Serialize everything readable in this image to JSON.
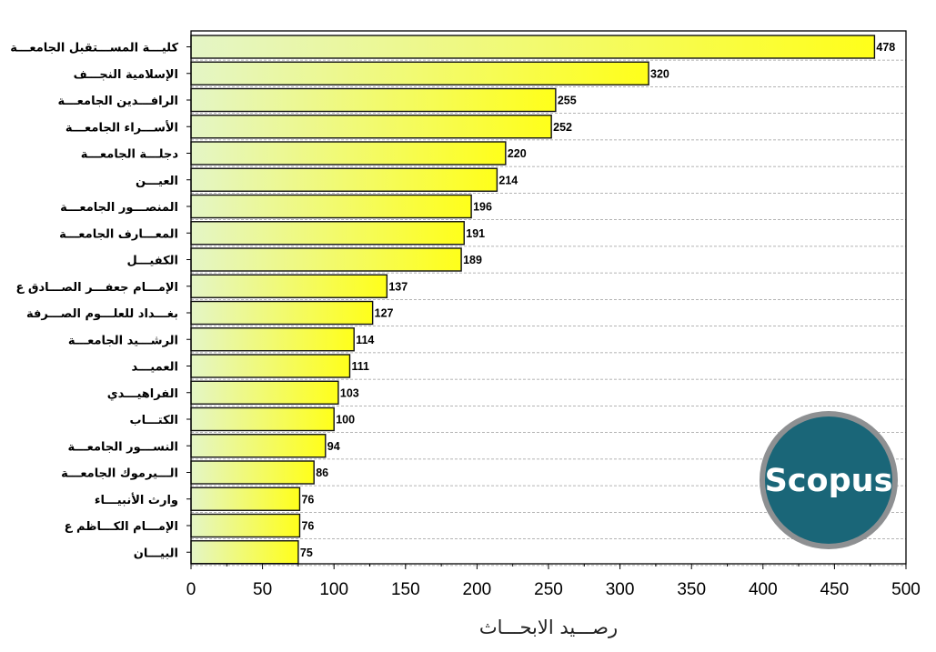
{
  "chart_data": {
    "type": "bar",
    "orientation": "horizontal",
    "title": "",
    "xlabel": "رصـــيد الابحـــاث",
    "ylabel": "",
    "xlim": [
      0,
      500
    ],
    "xticks": [
      0,
      50,
      100,
      150,
      200,
      250,
      300,
      350,
      400,
      450,
      500
    ],
    "grid": "horizontal dashed",
    "categories": [
      "كليـــة المســـتقبل الجامعـــة",
      "الإسلامية النجـــف",
      "الرافـــدين الجامعـــة",
      "الأســـراء الجامعـــة",
      "دجلـــة الجامعـــة",
      "العيـــن",
      "المنصـــور الجامعـــة",
      "المعـــارف الجامعـــة",
      "الكفيـــل",
      "الإمـــام جعفـــر الصـــادق ع",
      "بغـــداد للعلـــوم الصـــرفة",
      "الرشـــيد الجامعـــة",
      "العميـــد",
      "الفراهيـــدي",
      "الكتـــاب",
      "النســـور الجامعـــة",
      "الـــيرموك الجامعـــة",
      "وارث الأنبيـــاء",
      "الإمـــام الكـــاظم ع",
      "البيـــان"
    ],
    "values": [
      478,
      320,
      255,
      252,
      220,
      214,
      196,
      191,
      189,
      137,
      127,
      114,
      111,
      103,
      100,
      94,
      86,
      76,
      76,
      75
    ],
    "value_labels": [
      "478",
      "320",
      "255",
      "252",
      "220",
      "214",
      "196",
      "191",
      "189",
      "137",
      "127",
      "114",
      "111",
      "103",
      "100",
      "94",
      "86",
      "76",
      "76",
      "75"
    ],
    "colors": {
      "bar_start": "#e4f5c6",
      "bar_end": "#ffff1a",
      "bar_stroke": "#111111",
      "grid": "#9a9a9a",
      "axis": "#000000"
    }
  },
  "logo": {
    "text": "Scopus",
    "colors": {
      "fill": "#1a6678",
      "ring": "#8e9092",
      "text": "#ffffff"
    }
  }
}
